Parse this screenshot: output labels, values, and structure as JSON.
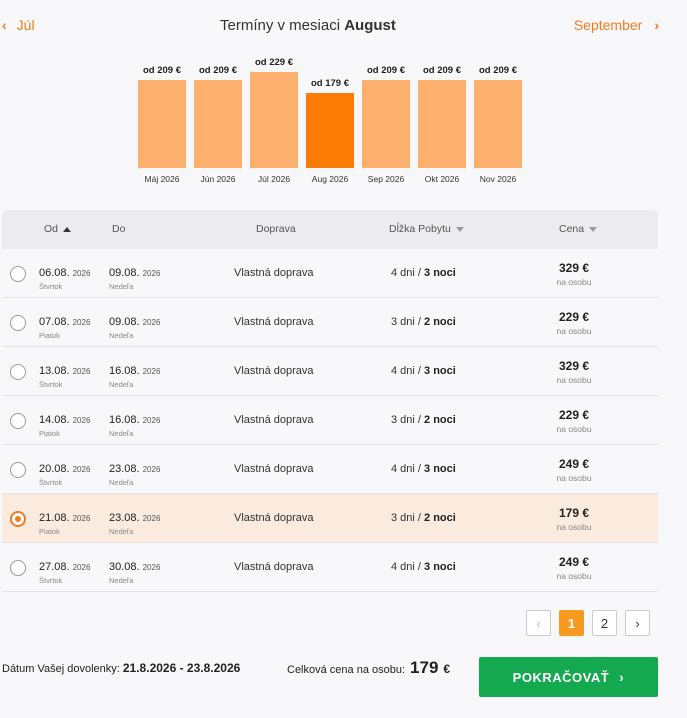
{
  "nav": {
    "prev_label": "Júl",
    "next_label": "September",
    "title_prefix": "Termíny v mesiaci",
    "title_month": "August"
  },
  "chart_data": {
    "type": "bar",
    "categories": [
      "Máj 2026",
      "Jún 2026",
      "Júl 2026",
      "Aug 2026",
      "Sep 2026",
      "Okt 2026",
      "Nov 2026"
    ],
    "values": [
      209,
      209,
      229,
      179,
      209,
      209,
      209
    ],
    "price_labels": [
      "od 209 €",
      "od 209 €",
      "od 229 €",
      "od 179 €",
      "od 209 €",
      "od 209 €",
      "od 209 €"
    ],
    "active_index": 3,
    "colors": {
      "bar": "#fdb06d",
      "active": "#fb7b05"
    }
  },
  "table": {
    "headers": {
      "from": "Od",
      "to": "Do",
      "transport": "Doprava",
      "stay": "Dĺžka Pobytu",
      "price": "Cena"
    },
    "rows": [
      {
        "from_date": "06.08.",
        "from_year": "2026",
        "from_day": "Štvrtok",
        "to_date": "09.08.",
        "to_year": "2026",
        "to_day": "Nedeľa",
        "transport": "Vlastná doprava",
        "days": "4 dni",
        "nights": "3 noci",
        "price": "329 €",
        "per": "na osobu",
        "selected": false
      },
      {
        "from_date": "07.08.",
        "from_year": "2026",
        "from_day": "Piatok",
        "to_date": "09.08.",
        "to_year": "2026",
        "to_day": "Nedeľa",
        "transport": "Vlastná doprava",
        "days": "3 dni",
        "nights": "2 noci",
        "price": "229 €",
        "per": "na osobu",
        "selected": false
      },
      {
        "from_date": "13.08.",
        "from_year": "2026",
        "from_day": "Štvrtok",
        "to_date": "16.08.",
        "to_year": "2026",
        "to_day": "Nedeľa",
        "transport": "Vlastná doprava",
        "days": "4 dni",
        "nights": "3 noci",
        "price": "329 €",
        "per": "na osobu",
        "selected": false
      },
      {
        "from_date": "14.08.",
        "from_year": "2026",
        "from_day": "Piatok",
        "to_date": "16.08.",
        "to_year": "2026",
        "to_day": "Nedeľa",
        "transport": "Vlastná doprava",
        "days": "3 dni",
        "nights": "2 noci",
        "price": "229 €",
        "per": "na osobu",
        "selected": false
      },
      {
        "from_date": "20.08.",
        "from_year": "2026",
        "from_day": "Štvrtok",
        "to_date": "23.08.",
        "to_year": "2026",
        "to_day": "Nedeľa",
        "transport": "Vlastná doprava",
        "days": "4 dni",
        "nights": "3 noci",
        "price": "249 €",
        "per": "na osobu",
        "selected": false
      },
      {
        "from_date": "21.08.",
        "from_year": "2026",
        "from_day": "Piatok",
        "to_date": "23.08.",
        "to_year": "2026",
        "to_day": "Nedeľa",
        "transport": "Vlastná doprava",
        "days": "3 dni",
        "nights": "2 noci",
        "price": "179 €",
        "per": "na osobu",
        "selected": true
      },
      {
        "from_date": "27.08.",
        "from_year": "2026",
        "from_day": "Štvrtok",
        "to_date": "30.08.",
        "to_year": "2026",
        "to_day": "Nedeľa",
        "transport": "Vlastná doprava",
        "days": "4 dni",
        "nights": "3 noci",
        "price": "249 €",
        "per": "na osobu",
        "selected": false
      }
    ]
  },
  "pagination": {
    "pages": [
      "1",
      "2"
    ],
    "current": "1"
  },
  "footer": {
    "dates_label": "Dátum Vašej dovolenky:",
    "dates_value": "21.8.2026 - 23.8.2026",
    "total_label": "Celková cena na osobu:",
    "total_amount": "179",
    "total_currency": "€",
    "cta_label": "POKRAČOVAŤ"
  },
  "icons": {
    "prev": "chevron-left-icon",
    "next": "chevron-right-icon",
    "sort_asc": "sort-up-icon",
    "sort_desc": "sort-down-icon"
  }
}
